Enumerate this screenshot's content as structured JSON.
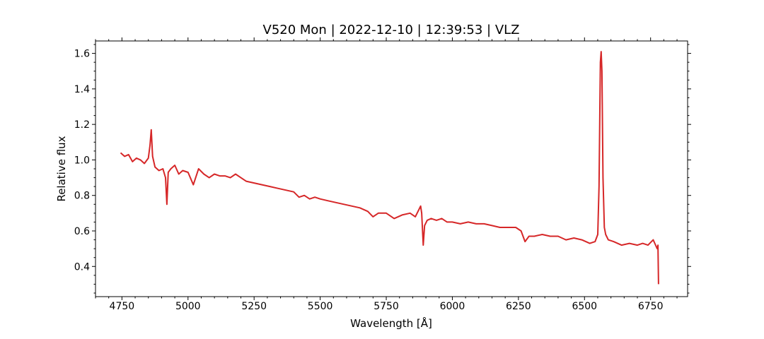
{
  "chart_data": {
    "type": "line",
    "title": "V520 Mon | 2022-12-10 | 12:39:53 | VLZ",
    "xlabel": "Wavelength [Å]",
    "ylabel": "Relative flux",
    "xlim": [
      4650,
      6890
    ],
    "ylim": [
      0.23,
      1.67
    ],
    "xticks": [
      4750,
      5000,
      5250,
      5500,
      5750,
      6000,
      6250,
      6500,
      6750
    ],
    "yticks": [
      0.4,
      0.6,
      0.8,
      1.0,
      1.2,
      1.4,
      1.6
    ],
    "x_tick_labels": [
      "4750",
      "5000",
      "5250",
      "5500",
      "5750",
      "6000",
      "6250",
      "6500",
      "6750"
    ],
    "y_tick_labels": [
      "0.4",
      "0.6",
      "0.8",
      "1.0",
      "1.2",
      "1.4",
      "1.6"
    ],
    "grid": false,
    "line_color": "#d62728",
    "series": [
      {
        "x": [
          4745,
          4760,
          4775,
          4790,
          4805,
          4820,
          4835,
          4850,
          4856,
          4861,
          4866,
          4875,
          4890,
          4905,
          4915,
          4920,
          4925,
          4935,
          4950,
          4965,
          4980,
          5000,
          5020,
          5040,
          5060,
          5080,
          5100,
          5120,
          5140,
          5160,
          5180,
          5200,
          5220,
          5250,
          5280,
          5310,
          5340,
          5370,
          5400,
          5420,
          5440,
          5460,
          5480,
          5500,
          5530,
          5560,
          5590,
          5620,
          5650,
          5680,
          5700,
          5720,
          5750,
          5780,
          5810,
          5840,
          5860,
          5870,
          5880,
          5884,
          5890,
          5895,
          5905,
          5920,
          5940,
          5960,
          5980,
          6000,
          6030,
          6060,
          6090,
          6120,
          6150,
          6180,
          6210,
          6240,
          6260,
          6275,
          6290,
          6310,
          6340,
          6370,
          6400,
          6430,
          6460,
          6490,
          6520,
          6540,
          6550,
          6555,
          6560,
          6563,
          6566,
          6570,
          6575,
          6580,
          6590,
          6610,
          6640,
          6670,
          6700,
          6720,
          6740,
          6760,
          6775,
          6778,
          6780
        ],
        "y": [
          1.04,
          1.02,
          1.03,
          0.99,
          1.01,
          1.0,
          0.98,
          1.01,
          1.08,
          1.17,
          1.02,
          0.96,
          0.94,
          0.95,
          0.9,
          0.75,
          0.93,
          0.95,
          0.97,
          0.92,
          0.94,
          0.93,
          0.86,
          0.95,
          0.92,
          0.9,
          0.92,
          0.91,
          0.91,
          0.9,
          0.92,
          0.9,
          0.88,
          0.87,
          0.86,
          0.85,
          0.84,
          0.83,
          0.82,
          0.79,
          0.8,
          0.78,
          0.79,
          0.78,
          0.77,
          0.76,
          0.75,
          0.74,
          0.73,
          0.71,
          0.68,
          0.7,
          0.7,
          0.67,
          0.69,
          0.7,
          0.68,
          0.71,
          0.74,
          0.7,
          0.52,
          0.63,
          0.66,
          0.67,
          0.66,
          0.67,
          0.65,
          0.65,
          0.64,
          0.65,
          0.64,
          0.64,
          0.63,
          0.62,
          0.62,
          0.62,
          0.6,
          0.54,
          0.57,
          0.57,
          0.58,
          0.57,
          0.57,
          0.55,
          0.56,
          0.55,
          0.53,
          0.54,
          0.58,
          0.85,
          1.55,
          1.61,
          1.5,
          0.9,
          0.62,
          0.58,
          0.55,
          0.54,
          0.52,
          0.53,
          0.52,
          0.53,
          0.52,
          0.55,
          0.5,
          0.52,
          0.3
        ]
      }
    ]
  }
}
